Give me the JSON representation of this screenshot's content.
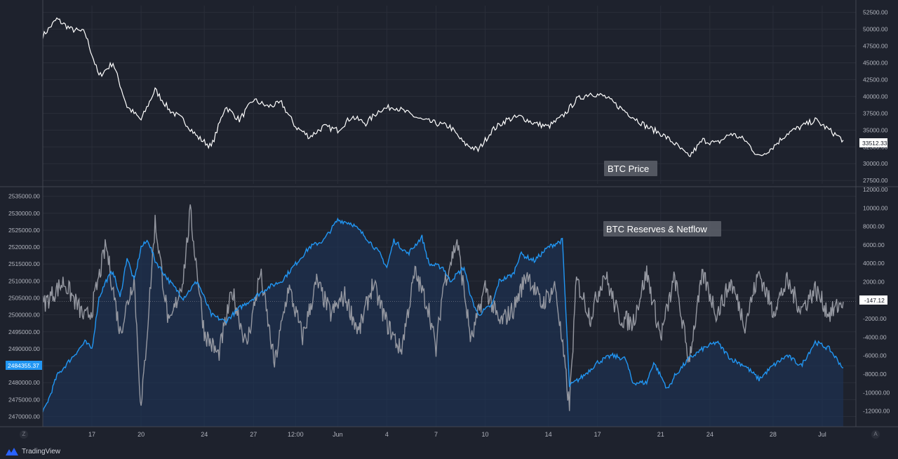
{
  "footer": {
    "brand": "TradingView"
  },
  "corner_buttons": {
    "left": "Z",
    "right": "A"
  },
  "colors": {
    "background": "#1e222d",
    "grid": "#2a2e39",
    "price_line": "#ffffff",
    "reserves_line": "#2196f3",
    "netflow_line": "#9598a1",
    "reserves_fill": "#1c3456"
  },
  "chart_data": [
    {
      "type": "line",
      "legend": "BTC Price",
      "legend_placement": "bottom-right",
      "last_value_label": "33512.33",
      "y_axis_side": "right",
      "ylim": [
        27000,
        53500
      ],
      "y_ticks": [
        "52500.00",
        "50000.00",
        "47500.00",
        "45000.00",
        "42500.00",
        "40000.00",
        "37500.00",
        "35000.00",
        "32500.00",
        "30000.00",
        "27500.00"
      ],
      "grid": true,
      "series": [
        {
          "points": [
            [
              0,
              49000
            ],
            [
              2,
              51500
            ],
            [
              4,
              50000
            ],
            [
              6,
              49500
            ],
            [
              8,
              43000
            ],
            [
              10,
              45000
            ],
            [
              12,
              38500
            ],
            [
              14,
              36500
            ],
            [
              16,
              41000
            ],
            [
              18,
              38000
            ],
            [
              20,
              36500
            ],
            [
              22,
              34000
            ],
            [
              24,
              32500
            ],
            [
              26,
              38500
            ],
            [
              28,
              36500
            ],
            [
              30,
              39500
            ],
            [
              32,
              38500
            ],
            [
              34,
              39000
            ],
            [
              36,
              35500
            ],
            [
              38,
              34000
            ],
            [
              40,
              35500
            ],
            [
              42,
              35000
            ],
            [
              44,
              37000
            ],
            [
              46,
              36000
            ],
            [
              48,
              38000
            ],
            [
              50,
              38500
            ],
            [
              52,
              37500
            ],
            [
              54,
              36500
            ],
            [
              56,
              36000
            ],
            [
              58,
              35500
            ],
            [
              60,
              33000
            ],
            [
              62,
              32000
            ],
            [
              64,
              35000
            ],
            [
              66,
              36500
            ],
            [
              68,
              37000
            ],
            [
              70,
              36000
            ],
            [
              72,
              35500
            ],
            [
              74,
              37000
            ],
            [
              76,
              39500
            ],
            [
              78,
              40500
            ],
            [
              80,
              40000
            ],
            [
              82,
              38500
            ],
            [
              84,
              37000
            ],
            [
              86,
              35500
            ],
            [
              88,
              34500
            ],
            [
              90,
              33000
            ],
            [
              92,
              31000
            ],
            [
              94,
              33500
            ],
            [
              96,
              33000
            ],
            [
              98,
              34500
            ],
            [
              100,
              33500
            ],
            [
              102,
              31000
            ],
            [
              104,
              32500
            ],
            [
              106,
              34500
            ],
            [
              108,
              35500
            ],
            [
              110,
              36500
            ],
            [
              112,
              35000
            ],
            [
              114,
              33500
            ]
          ]
        }
      ]
    },
    {
      "type": "line",
      "legend": "BTC Reserves & Netflow",
      "legend_placement": "top-right",
      "last_value_left": "2484355.37",
      "last_value_right": "-147.12",
      "left_axis": {
        "ylim": [
          2467000,
          2537000
        ],
        "ticks": [
          "2535000.00",
          "2530000.00",
          "2525000.00",
          "2520000.00",
          "2515000.00",
          "2510000.00",
          "2505000.00",
          "2500000.00",
          "2495000.00",
          "2490000.00",
          "2485000.00",
          "2480000.00",
          "2475000.00",
          "2470000.00"
        ]
      },
      "right_axis": {
        "ylim": [
          -13700,
          12000
        ],
        "ticks": [
          "12000.00",
          "10000.00",
          "8000.00",
          "6000.00",
          "4000.00",
          "2000.00",
          "0.00",
          "-2000.00",
          "-4000.00",
          "-6000.00",
          "-8000.00",
          "-10000.00",
          "-12000.00"
        ]
      },
      "x_ticks": [
        {
          "day": 7,
          "label": "17"
        },
        {
          "day": 14,
          "label": "20"
        },
        {
          "day": 23,
          "label": "24"
        },
        {
          "day": 30,
          "label": "27"
        },
        {
          "day": 36,
          "label": "12:00"
        },
        {
          "day": 42,
          "label": "Jun"
        },
        {
          "day": 49,
          "label": "4"
        },
        {
          "day": 56,
          "label": "7"
        },
        {
          "day": 63,
          "label": "10"
        },
        {
          "day": 72,
          "label": "14"
        },
        {
          "day": 79,
          "label": "17"
        },
        {
          "day": 88,
          "label": "21"
        },
        {
          "day": 95,
          "label": "24"
        },
        {
          "day": 104,
          "label": "28"
        },
        {
          "day": 111,
          "label": "Jul"
        }
      ],
      "xlim": [
        0,
        114
      ],
      "series": [
        {
          "axis": "left",
          "points": [
            [
              0,
              2471000
            ],
            [
              1,
              2476000
            ],
            [
              2,
              2482000
            ],
            [
              4,
              2487000
            ],
            [
              6,
              2492000
            ],
            [
              7,
              2490000
            ],
            [
              8,
              2505000
            ],
            [
              9,
              2510000
            ],
            [
              10,
              2513000
            ],
            [
              11,
              2505000
            ],
            [
              12,
              2517000
            ],
            [
              13,
              2510000
            ],
            [
              14,
              2520000
            ],
            [
              15,
              2522000
            ],
            [
              16,
              2516000
            ],
            [
              18,
              2510000
            ],
            [
              20,
              2505000
            ],
            [
              22,
              2510000
            ],
            [
              24,
              2500000
            ],
            [
              26,
              2498000
            ],
            [
              28,
              2502000
            ],
            [
              30,
              2505000
            ],
            [
              32,
              2508000
            ],
            [
              34,
              2510000
            ],
            [
              36,
              2515000
            ],
            [
              38,
              2520000
            ],
            [
              40,
              2522000
            ],
            [
              42,
              2528000
            ],
            [
              44,
              2527000
            ],
            [
              46,
              2523000
            ],
            [
              48,
              2518000
            ],
            [
              49,
              2514000
            ],
            [
              50,
              2522000
            ],
            [
              52,
              2518000
            ],
            [
              54,
              2523000
            ],
            [
              55,
              2515000
            ],
            [
              57,
              2514000
            ],
            [
              58,
              2510000
            ],
            [
              60,
              2514000
            ],
            [
              61,
              2505000
            ],
            [
              62,
              2500000
            ],
            [
              64,
              2503000
            ],
            [
              65,
              2510000
            ],
            [
              67,
              2512000
            ],
            [
              68,
              2518000
            ],
            [
              70,
              2516000
            ],
            [
              72,
              2520000
            ],
            [
              74,
              2522000
            ],
            [
              75,
              2479000
            ],
            [
              77,
              2482000
            ],
            [
              79,
              2486000
            ],
            [
              81,
              2488000
            ],
            [
              83,
              2487000
            ],
            [
              84,
              2480000
            ],
            [
              86,
              2480000
            ],
            [
              87,
              2486000
            ],
            [
              88,
              2482000
            ],
            [
              89,
              2478000
            ],
            [
              90,
              2482000
            ],
            [
              92,
              2487000
            ],
            [
              94,
              2490000
            ],
            [
              96,
              2492000
            ],
            [
              98,
              2487000
            ],
            [
              100,
              2485000
            ],
            [
              102,
              2481000
            ],
            [
              104,
              2485000
            ],
            [
              106,
              2488000
            ],
            [
              108,
              2485000
            ],
            [
              110,
              2492000
            ],
            [
              112,
              2490000
            ],
            [
              114,
              2484355
            ]
          ]
        },
        {
          "axis": "right",
          "points": [
            [
              0,
              -500
            ],
            [
              3,
              2000
            ],
            [
              6,
              -2000
            ],
            [
              7,
              -1000
            ],
            [
              9,
              6000
            ],
            [
              11,
              -3500
            ],
            [
              13,
              2500
            ],
            [
              14,
              -12000
            ],
            [
              15,
              -2000
            ],
            [
              16,
              8500
            ],
            [
              18,
              -3000
            ],
            [
              20,
              2500
            ],
            [
              21,
              9500
            ],
            [
              23,
              -3500
            ],
            [
              25,
              -6000
            ],
            [
              27,
              1000
            ],
            [
              29,
              -5000
            ],
            [
              31,
              3000
            ],
            [
              33,
              -7000
            ],
            [
              35,
              1500
            ],
            [
              37,
              -4000
            ],
            [
              39,
              2000
            ],
            [
              41,
              -1500
            ],
            [
              43,
              500
            ],
            [
              45,
              -3500
            ],
            [
              47,
              1800
            ],
            [
              49,
              -2500
            ],
            [
              51,
              -5500
            ],
            [
              53,
              3000
            ],
            [
              55,
              -1000
            ],
            [
              56,
              -5500
            ],
            [
              57,
              1500
            ],
            [
              59,
              6500
            ],
            [
              61,
              -4500
            ],
            [
              63,
              1500
            ],
            [
              65,
              -2500
            ],
            [
              67,
              -1000
            ],
            [
              69,
              3000
            ],
            [
              71,
              -500
            ],
            [
              73,
              1500
            ],
            [
              75,
              -11500
            ],
            [
              76,
              2200
            ],
            [
              78,
              -1800
            ],
            [
              80,
              3000
            ],
            [
              82,
              -1800
            ],
            [
              84,
              -2500
            ],
            [
              86,
              3000
            ],
            [
              88,
              -4000
            ],
            [
              90,
              2500
            ],
            [
              92,
              -6500
            ],
            [
              94,
              2800
            ],
            [
              96,
              -1500
            ],
            [
              98,
              2000
            ],
            [
              100,
              -2500
            ],
            [
              102,
              3000
            ],
            [
              104,
              -1200
            ],
            [
              106,
              2000
            ],
            [
              108,
              -1000
            ],
            [
              110,
              1200
            ],
            [
              112,
              -1500
            ],
            [
              114,
              -147
            ]
          ]
        }
      ]
    }
  ]
}
